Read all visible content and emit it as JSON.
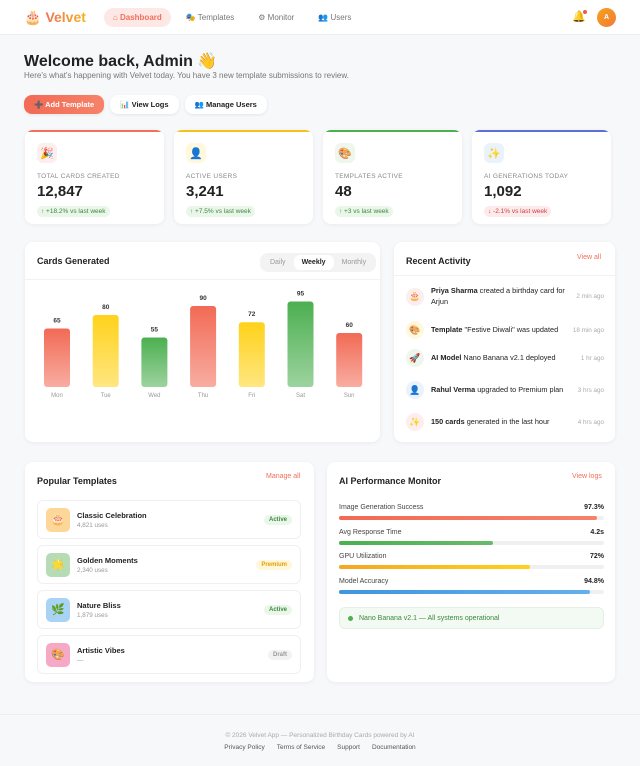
{
  "nav": {
    "brand": "Velvet",
    "brand_icon": "🎂",
    "items": [
      {
        "label": "⌂ Dashboard",
        "active": true
      },
      {
        "label": "🎭 Templates"
      },
      {
        "label": "⚙ Monitor"
      },
      {
        "label": "👥 Users"
      }
    ],
    "bell": "🔔",
    "avatar": "A"
  },
  "header": {
    "title": "Welcome back, Admin 👋",
    "subtitle": "Here's what's happening with Velvet today. You have 3 new template submissions to review."
  },
  "actions": [
    "➕ Add Template",
    "📊 View Logs",
    "👥 Manage Users"
  ],
  "stats": [
    {
      "icon": "🎉",
      "label": "TOTAL CARDS CREATED",
      "value": "12,847",
      "change": "↑ +18.2% vs last week",
      "trend": "up",
      "color": "#f0705a"
    },
    {
      "icon": "👤",
      "label": "ACTIVE USERS",
      "value": "3,241",
      "change": "↑ +7.5% vs last week",
      "trend": "up",
      "color": "#f6c21a"
    },
    {
      "icon": "🎨",
      "label": "TEMPLATES ACTIVE",
      "value": "48",
      "change": "↑ +3 vs last week",
      "trend": "up",
      "color": "#4caf50"
    },
    {
      "icon": "✨",
      "label": "AI GENERATIONS TODAY",
      "value": "1,092",
      "change": "↓ -2.1% vs last week",
      "trend": "down",
      "color": "#5b6fd8"
    }
  ],
  "chart_card": {
    "title": "Cards Generated",
    "tabs": [
      "Daily",
      "Weekly",
      "Monthly"
    ],
    "active_tab": "Weekly"
  },
  "chart_data": {
    "type": "bar",
    "categories": [
      "Mon",
      "Tue",
      "Wed",
      "Thu",
      "Fri",
      "Sat",
      "Sun"
    ],
    "values": [
      65,
      80,
      55,
      90,
      72,
      95,
      60
    ],
    "colors": [
      "#f26a55",
      "#ffd21a",
      "#4caf50",
      "#f26a55",
      "#ffd21a",
      "#4caf50",
      "#f26a55"
    ],
    "ylim": [
      0,
      100
    ],
    "grid": false
  },
  "activity": {
    "title": "Recent Activity",
    "view_all": "View all",
    "items": [
      {
        "icon": "🎂",
        "bold": "Priya Sharma",
        "text": " created a birthday card for Arjun",
        "time": "2 min ago",
        "bg": "#fdeeee"
      },
      {
        "icon": "🎨",
        "bold": "Template",
        "text": " \"Festive Diwali\" was updated",
        "time": "18 min ago",
        "bg": "#fff8dc"
      },
      {
        "icon": "🚀",
        "bold": "AI Model",
        "text": " Nano Banana v2.1 deployed",
        "time": "1 hr ago",
        "bg": "#eef6ee"
      },
      {
        "icon": "👤",
        "bold": "Rahul Verma",
        "text": " upgraded to Premium plan",
        "time": "3 hrs ago",
        "bg": "#eaf3fc"
      },
      {
        "icon": "✨",
        "bold": "150 cards",
        "text": " generated in the last hour",
        "time": "4 hrs ago",
        "bg": "#fdeeee"
      }
    ]
  },
  "templates": {
    "title": "Popular Templates",
    "manage": "Manage all",
    "items": [
      {
        "icon": "🎂",
        "name": "Classic Celebration",
        "uses": "4,821 uses",
        "badge": "Active",
        "bg": "#fdd79a"
      },
      {
        "icon": "🌟",
        "name": "Golden Moments",
        "uses": "2,340 uses",
        "badge": "Premium",
        "bg": "#b5dcb5"
      },
      {
        "icon": "🌿",
        "name": "Nature Bliss",
        "uses": "1,879 uses",
        "badge": "Active",
        "bg": "#a9d3f5"
      },
      {
        "icon": "🎨",
        "name": "Artistic Vibes",
        "uses": "—",
        "badge": "Draft",
        "bg": "#f5a9c6"
      }
    ]
  },
  "ai": {
    "title": "AI Performance Monitor",
    "view": "View logs",
    "metrics": [
      {
        "label": "Image Generation Success",
        "value": "97.3%",
        "fill": 97.3,
        "color": "linear-gradient(90deg,#f26a55,#f6826a)"
      },
      {
        "label": "Avg Response Time",
        "value": "4.2s",
        "fill": 58,
        "color": "linear-gradient(90deg,#4caf50,#66bb6a)"
      },
      {
        "label": "GPU Utilization",
        "value": "72%",
        "fill": 72,
        "color": "linear-gradient(90deg,#f5a623,#ffd21a)"
      },
      {
        "label": "Model Accuracy",
        "value": "94.8%",
        "fill": 94.8,
        "color": "linear-gradient(90deg,#3f95e0,#64b0ee)"
      }
    ],
    "status": "Nano Banana v2.1 — All systems operational"
  },
  "footer": {
    "copyright": "© 2026 Velvet App — Personalized Birthday Cards powered by AI",
    "links": [
      "Privacy Policy",
      "Terms of Service",
      "Support",
      "Documentation"
    ]
  }
}
